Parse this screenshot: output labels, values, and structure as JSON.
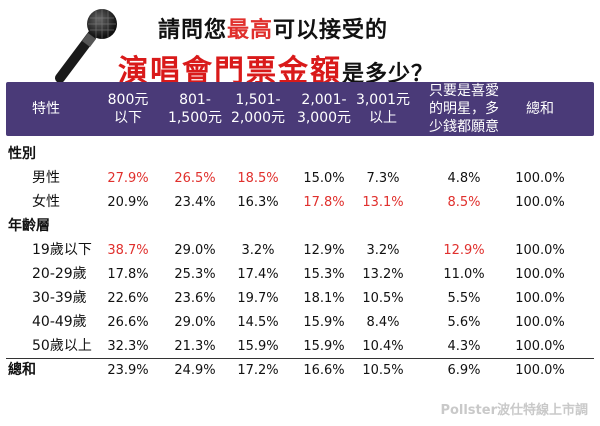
{
  "title": {
    "line1_pre": "請問您",
    "line1_highlight": "最高",
    "line1_post": "可以接受的",
    "line2_main": "演唱會門票金額",
    "line2_tail": "是多少？"
  },
  "icons": {
    "microphone": "microphone-icon"
  },
  "table": {
    "columns": [
      "特性",
      "800元\n以下",
      "801-\n1,500元",
      "1,501-\n2,000元",
      "2,001-\n3,000元",
      "3,001元\n以上",
      "只要是喜愛\n的明星，多\n少錢都願意",
      "總和"
    ],
    "sections": [
      {
        "label": "性別",
        "rows": [
          {
            "label": "男性",
            "values": [
              "27.9%",
              "26.5%",
              "18.5%",
              "15.0%",
              "7.3%",
              "4.8%",
              "100.0%"
            ],
            "highlight": [
              0,
              1,
              2
            ]
          },
          {
            "label": "女性",
            "values": [
              "20.9%",
              "23.4%",
              "16.3%",
              "17.8%",
              "13.1%",
              "8.5%",
              "100.0%"
            ],
            "highlight": [
              3,
              4,
              5
            ]
          }
        ]
      },
      {
        "label": "年齡層",
        "rows": [
          {
            "label": "19歲以下",
            "values": [
              "38.7%",
              "29.0%",
              "3.2%",
              "12.9%",
              "3.2%",
              "12.9%",
              "100.0%"
            ],
            "highlight": [
              0,
              5
            ]
          },
          {
            "label": "20-29歲",
            "values": [
              "17.8%",
              "25.3%",
              "17.4%",
              "15.3%",
              "13.2%",
              "11.0%",
              "100.0%"
            ],
            "highlight": []
          },
          {
            "label": "30-39歲",
            "values": [
              "22.6%",
              "23.6%",
              "19.7%",
              "18.1%",
              "10.5%",
              "5.5%",
              "100.0%"
            ],
            "highlight": []
          },
          {
            "label": "40-49歲",
            "values": [
              "26.6%",
              "29.0%",
              "14.5%",
              "15.9%",
              "8.4%",
              "5.6%",
              "100.0%"
            ],
            "highlight": []
          },
          {
            "label": "50歲以上",
            "values": [
              "32.3%",
              "21.3%",
              "15.9%",
              "15.9%",
              "10.4%",
              "4.3%",
              "100.0%"
            ],
            "highlight": []
          }
        ]
      }
    ],
    "total": {
      "label": "總和",
      "values": [
        "23.9%",
        "24.9%",
        "17.2%",
        "16.6%",
        "10.5%",
        "6.9%",
        "100.0%"
      ]
    },
    "highlight_color": "#e0302d",
    "header_color": "#4a3a78"
  },
  "footer": {
    "text": "Pollster波仕特線上市調"
  }
}
